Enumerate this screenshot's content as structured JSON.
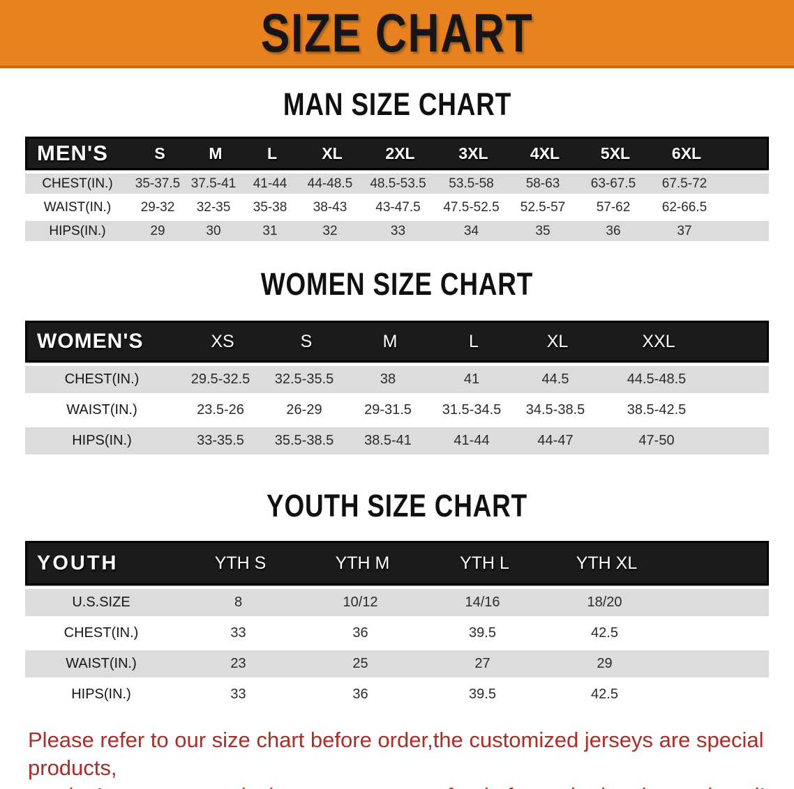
{
  "banner": {
    "title": "SIZE CHART"
  },
  "men": {
    "heading": "MAN SIZE CHART",
    "corner": "MEN'S",
    "cols": [
      "S",
      "M",
      "L",
      "XL",
      "2XL",
      "3XL",
      "4XL",
      "5XL",
      "6XL"
    ],
    "rows": [
      {
        "label": "CHEST(IN.)",
        "vals": [
          "35-37.5",
          "37.5-41",
          "41-44",
          "44-48.5",
          "48.5-53.5",
          "53.5-58",
          "58-63",
          "63-67.5",
          "67.5-72"
        ]
      },
      {
        "label": "WAIST(IN.)",
        "vals": [
          "29-32",
          "32-35",
          "35-38",
          "38-43",
          "43-47.5",
          "47.5-52.5",
          "52.5-57",
          "57-62",
          "62-66.5"
        ]
      },
      {
        "label": "HIPS(IN.)",
        "vals": [
          "29",
          "30",
          "31",
          "32",
          "33",
          "34",
          "35",
          "36",
          "37"
        ]
      }
    ]
  },
  "women": {
    "heading": "WOMEN SIZE CHART",
    "corner": "WOMEN'S",
    "cols": [
      "XS",
      "S",
      "M",
      "L",
      "XL",
      "XXL"
    ],
    "rows": [
      {
        "label": "CHEST(IN.)",
        "vals": [
          "29.5-32.5",
          "32.5-35.5",
          "38",
          "41",
          "44.5",
          "44.5-48.5"
        ]
      },
      {
        "label": "WAIST(IN.)",
        "vals": [
          "23.5-26",
          "26-29",
          "29-31.5",
          "31.5-34.5",
          "34.5-38.5",
          "38.5-42.5"
        ]
      },
      {
        "label": "HIPS(IN.)",
        "vals": [
          "33-35.5",
          "35.5-38.5",
          "38.5-41",
          "41-44",
          "44-47",
          "47-50"
        ]
      }
    ]
  },
  "youth": {
    "heading": "YOUTH SIZE CHART",
    "corner": "YOUTH",
    "cols": [
      "YTH S",
      "YTH M",
      "YTH L",
      "YTH XL"
    ],
    "rows": [
      {
        "label": "U.S.SIZE",
        "vals": [
          "8",
          "10/12",
          "14/16",
          "18/20"
        ]
      },
      {
        "label": "CHEST(IN.)",
        "vals": [
          "33",
          "36",
          "39.5",
          "42.5"
        ]
      },
      {
        "label": "WAIST(IN.)",
        "vals": [
          "23",
          "25",
          "27",
          "29"
        ]
      },
      {
        "label": "HIPS(IN.)",
        "vals": [
          "33",
          "36",
          "39.5",
          "42.5"
        ]
      }
    ]
  },
  "disclaimer": {
    "line1": "Please refer to our size chart before order,the customized jerseys are special products,",
    "line2": "we don't accept cancel, change, teturn or refund after order has been placed!"
  },
  "colors": {
    "banner_bg": "#E8821E",
    "band_bg": "#1B1B1B",
    "row_gray": "#DCDCDC",
    "row_white": "#FFFFFF",
    "disclaimer_red": "#B22B25",
    "bottom_strip": "#C9C9C9"
  }
}
